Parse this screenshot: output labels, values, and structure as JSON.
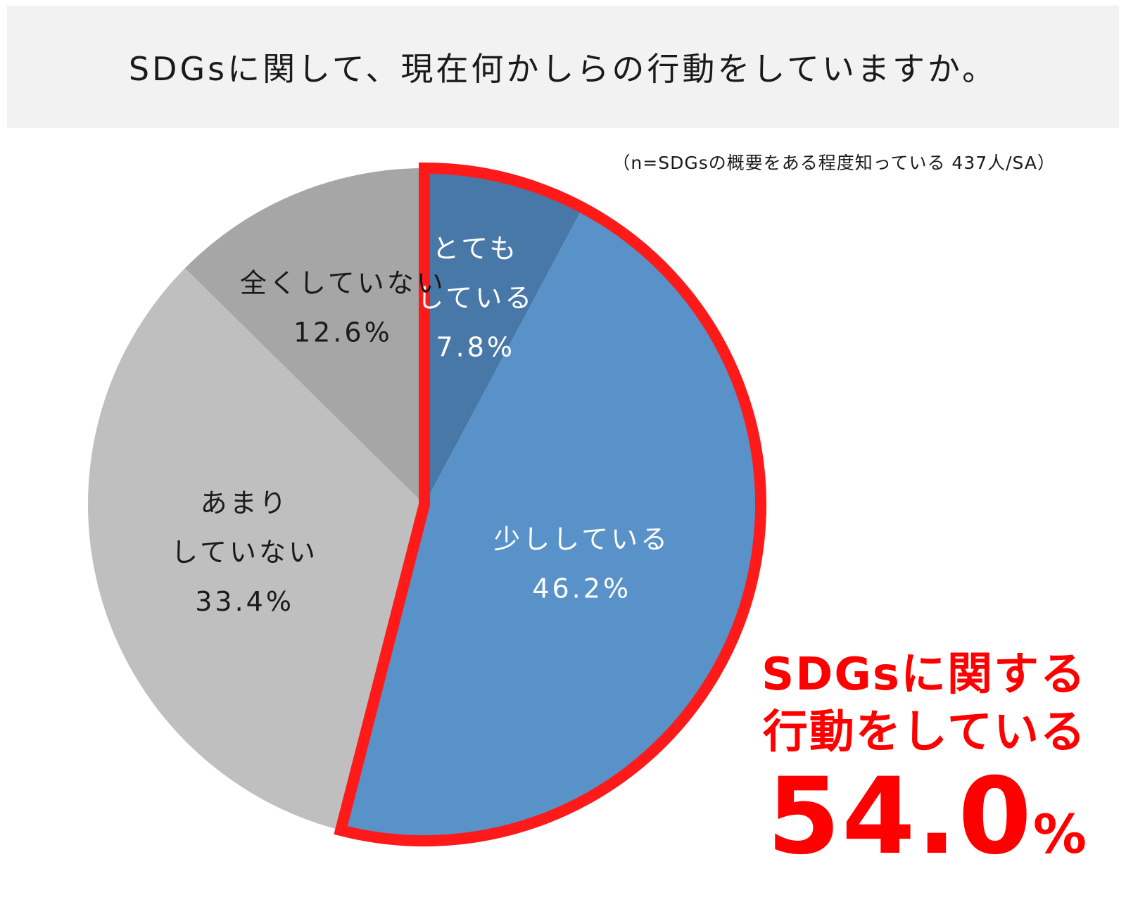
{
  "header": {
    "title": "SDGsに関して、現在何かしらの行動をしていますか。"
  },
  "note": "（n=SDGsの概要をある程度知っている 437人/SA）",
  "chart_data": {
    "type": "pie",
    "slices": [
      {
        "label_lines": [
          "とても",
          "している"
        ],
        "value": 7.8,
        "value_label": "7.8%",
        "color": "#4878a8",
        "text_color": "#ffffff"
      },
      {
        "label_lines": [
          "少ししている"
        ],
        "value": 46.2,
        "value_label": "46.2%",
        "color": "#5892c8",
        "text_color": "#ffffff"
      },
      {
        "label_lines": [
          "あまり",
          "していない"
        ],
        "value": 33.4,
        "value_label": "33.4%",
        "color": "#bfbfbf",
        "text_color": "#1a1a1a"
      },
      {
        "label_lines": [
          "全くしていない"
        ],
        "value": 12.6,
        "value_label": "12.6%",
        "color": "#a6a6a6",
        "text_color": "#1a1a1a"
      }
    ],
    "highlight": {
      "outline_color": "#ff1a1a",
      "slices": [
        0,
        1
      ]
    }
  },
  "callout": {
    "line1": "SDGsに関する",
    "line2": "行動をしている",
    "value": "54.0",
    "unit": "%",
    "color": "#ff0000"
  }
}
